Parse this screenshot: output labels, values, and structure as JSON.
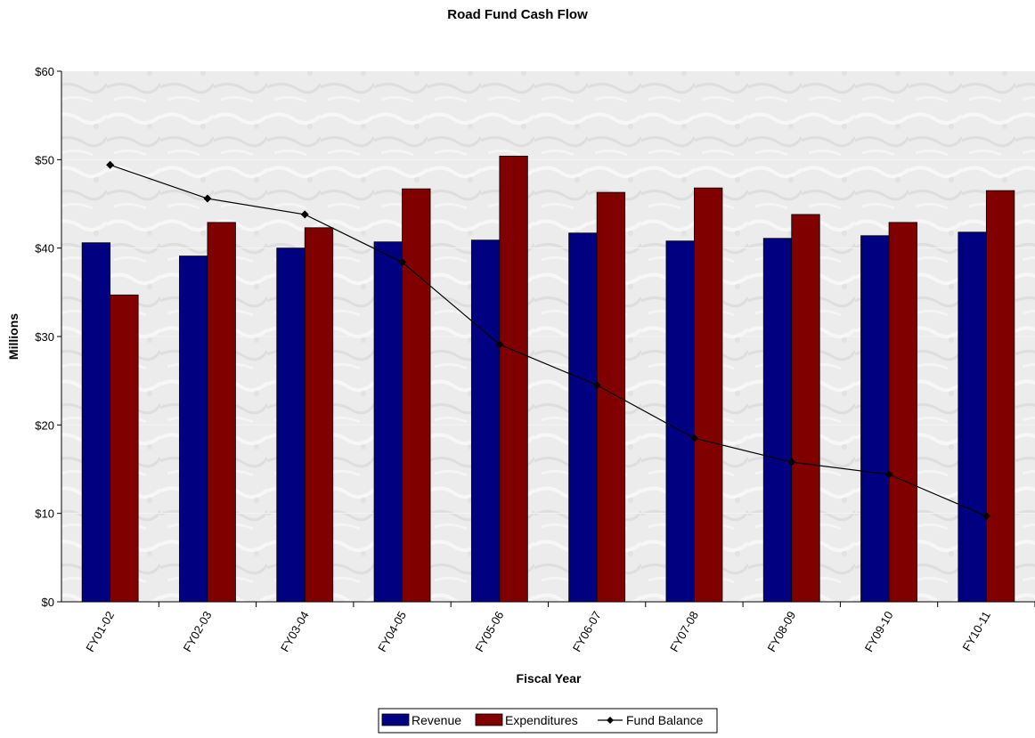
{
  "chart_data": {
    "type": "bar",
    "title": "Road Fund Cash Flow",
    "xlabel": "Fiscal Year",
    "ylabel": "Millions",
    "ylim": [
      0,
      60
    ],
    "yticks": [
      "$0",
      "$10",
      "$20",
      "$30",
      "$40",
      "$50",
      "$60"
    ],
    "grid": true,
    "legend_position": "bottom",
    "categories": [
      "FY01-02",
      "FY02-03",
      "FY03-04",
      "FY04-05",
      "FY05-06",
      "FY06-07",
      "FY07-08",
      "FY08-09",
      "FY09-10",
      "FY10-11"
    ],
    "series": [
      {
        "name": "Revenue",
        "kind": "bar",
        "color": "#000080",
        "values": [
          40.6,
          39.1,
          40.0,
          40.7,
          40.9,
          41.7,
          40.8,
          41.1,
          41.4,
          41.8
        ]
      },
      {
        "name": "Expenditures",
        "kind": "bar",
        "color": "#800000",
        "values": [
          34.7,
          42.9,
          42.3,
          46.7,
          50.4,
          46.3,
          46.8,
          43.8,
          42.9,
          46.5
        ]
      },
      {
        "name": "Fund Balance",
        "kind": "line",
        "color": "#000000",
        "values": [
          49.4,
          45.6,
          43.8,
          38.4,
          29.1,
          24.5,
          18.5,
          15.8,
          14.4,
          9.7
        ]
      }
    ]
  }
}
